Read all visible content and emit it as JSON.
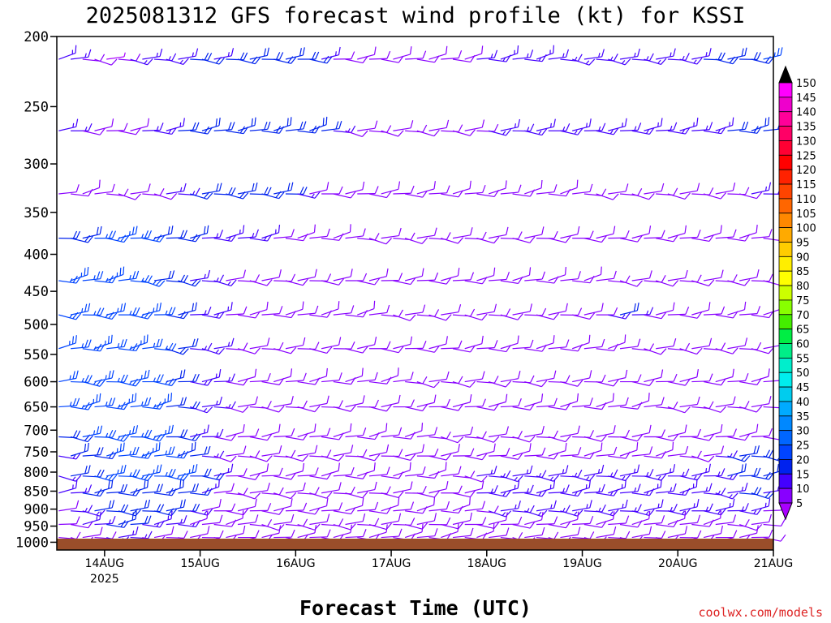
{
  "chart_data": {
    "type": "wind-barb-time-height",
    "title": "2025081312 GFS forecast wind profile (kt) for KSSI",
    "xlabel": "Forecast Time (UTC)",
    "ylabel": "",
    "credit": "coolwx.com/models",
    "credit_color": "#dd2222",
    "ground_color": "#9a4e2a",
    "x_ticks": [
      {
        "label": "14AUG",
        "sub": "2025",
        "day": 0
      },
      {
        "label": "15AUG",
        "sub": "",
        "day": 1
      },
      {
        "label": "16AUG",
        "sub": "",
        "day": 2
      },
      {
        "label": "17AUG",
        "sub": "",
        "day": 3
      },
      {
        "label": "18AUG",
        "sub": "",
        "day": 4
      },
      {
        "label": "19AUG",
        "sub": "",
        "day": 5
      },
      {
        "label": "20AUG",
        "sub": "",
        "day": 6
      },
      {
        "label": "21AUG",
        "sub": "",
        "day": 7
      }
    ],
    "xlim_days": [
      -0.5,
      7.0
    ],
    "y_ticks": [
      "200",
      "250",
      "300",
      "350",
      "400",
      "450",
      "500",
      "550",
      "600",
      "650",
      "700",
      "750",
      "800",
      "850",
      "900",
      "950",
      "1000"
    ],
    "y_unit": "hPa",
    "ylim": [
      200,
      1025
    ],
    "y_scale": "log-pressure",
    "time_step_hours": 3,
    "levels": [
      {
        "p": 215,
        "speed": [
          15,
          15,
          12,
          10,
          5,
          12,
          15,
          15,
          15,
          15,
          15,
          18,
          18,
          15,
          18,
          18,
          20,
          20,
          20,
          20,
          18,
          18,
          15,
          12,
          8,
          8,
          8,
          8,
          10,
          12,
          12,
          12,
          12,
          12,
          12,
          14,
          15,
          15,
          15,
          15,
          15,
          15,
          15,
          15,
          15,
          15,
          15,
          15,
          15,
          15,
          15,
          15,
          15,
          15,
          18,
          18,
          20,
          20,
          20,
          25,
          30,
          38,
          40,
          42
        ]
      },
      {
        "p": 270,
        "speed": [
          15,
          15,
          12,
          12,
          10,
          10,
          12,
          15,
          15,
          15,
          18,
          18,
          20,
          20,
          20,
          22,
          22,
          22,
          22,
          22,
          20,
          20,
          18,
          15,
          12,
          12,
          12,
          12,
          12,
          12,
          12,
          12,
          12,
          12,
          12,
          12,
          15,
          15,
          15,
          15,
          15,
          15,
          15,
          15,
          15,
          15,
          15,
          15,
          15,
          15,
          15,
          15,
          15,
          15,
          15,
          15,
          18,
          18,
          20,
          20,
          22,
          25,
          30,
          35
        ]
      },
      {
        "p": 330,
        "speed": [
          12,
          12,
          10,
          10,
          10,
          10,
          10,
          12,
          12,
          15,
          15,
          18,
          18,
          20,
          20,
          20,
          20,
          20,
          20,
          18,
          15,
          12,
          10,
          8,
          8,
          8,
          8,
          8,
          8,
          10,
          10,
          10,
          10,
          10,
          10,
          10,
          10,
          10,
          10,
          10,
          12,
          12,
          12,
          12,
          12,
          12,
          12,
          12,
          12,
          12,
          12,
          12,
          12,
          12,
          12,
          12,
          12,
          12,
          15,
          15,
          18,
          20,
          22,
          25
        ]
      },
      {
        "p": 380,
        "speed": [
          20,
          20,
          22,
          25,
          25,
          25,
          25,
          25,
          22,
          20,
          18,
          18,
          15,
          15,
          15,
          15,
          15,
          15,
          12,
          12,
          12,
          10,
          10,
          10,
          10,
          10,
          8,
          8,
          8,
          8,
          8,
          8,
          8,
          8,
          8,
          8,
          10,
          10,
          10,
          10,
          10,
          10,
          10,
          10,
          10,
          10,
          10,
          10,
          10,
          10,
          10,
          10,
          10,
          10,
          10,
          10,
          10,
          12,
          12,
          12,
          15,
          15,
          18,
          20
        ]
      },
      {
        "p": 435,
        "speed": [
          25,
          25,
          25,
          25,
          25,
          25,
          25,
          25,
          22,
          20,
          18,
          15,
          15,
          15,
          12,
          12,
          12,
          10,
          10,
          10,
          8,
          8,
          8,
          8,
          8,
          8,
          8,
          8,
          8,
          8,
          8,
          8,
          8,
          8,
          8,
          8,
          8,
          8,
          8,
          8,
          8,
          8,
          8,
          8,
          8,
          8,
          8,
          8,
          8,
          8,
          8,
          8,
          8,
          8,
          8,
          8,
          8,
          8,
          8,
          8,
          10,
          10,
          10,
          12
        ]
      },
      {
        "p": 485,
        "speed": [
          25,
          25,
          25,
          25,
          25,
          25,
          25,
          25,
          25,
          20,
          18,
          15,
          15,
          15,
          12,
          12,
          12,
          10,
          10,
          10,
          8,
          8,
          8,
          8,
          8,
          8,
          8,
          8,
          8,
          8,
          8,
          8,
          8,
          8,
          8,
          8,
          8,
          8,
          8,
          8,
          8,
          8,
          8,
          8,
          8,
          8,
          15,
          18,
          15,
          8,
          8,
          8,
          8,
          8,
          8,
          8,
          8,
          8,
          8,
          8,
          8,
          8,
          8,
          10
        ]
      },
      {
        "p": 540,
        "speed": [
          25,
          25,
          25,
          25,
          25,
          25,
          25,
          25,
          25,
          20,
          18,
          15,
          15,
          15,
          12,
          12,
          12,
          10,
          10,
          10,
          8,
          8,
          8,
          8,
          8,
          8,
          8,
          8,
          8,
          8,
          8,
          8,
          8,
          8,
          8,
          8,
          8,
          8,
          8,
          8,
          8,
          8,
          8,
          8,
          8,
          8,
          8,
          8,
          8,
          8,
          8,
          8,
          8,
          8,
          8,
          8,
          8,
          8,
          8,
          8,
          8,
          8,
          8,
          8
        ]
      },
      {
        "p": 600,
        "speed": [
          25,
          25,
          25,
          25,
          25,
          25,
          25,
          25,
          25,
          20,
          18,
          15,
          15,
          15,
          12,
          12,
          12,
          10,
          10,
          10,
          8,
          8,
          8,
          8,
          8,
          8,
          8,
          8,
          8,
          8,
          8,
          8,
          8,
          8,
          8,
          8,
          8,
          8,
          8,
          8,
          8,
          8,
          8,
          8,
          8,
          8,
          8,
          8,
          8,
          8,
          8,
          8,
          8,
          8,
          8,
          8,
          8,
          8,
          8,
          8,
          8,
          8,
          8,
          8
        ]
      },
      {
        "p": 650,
        "speed": [
          25,
          25,
          25,
          25,
          25,
          25,
          25,
          25,
          25,
          20,
          18,
          15,
          15,
          15,
          12,
          12,
          12,
          10,
          10,
          10,
          8,
          8,
          8,
          8,
          8,
          8,
          8,
          8,
          8,
          8,
          8,
          8,
          8,
          8,
          8,
          8,
          8,
          8,
          8,
          8,
          8,
          8,
          8,
          8,
          8,
          8,
          8,
          8,
          8,
          8,
          8,
          8,
          8,
          8,
          8,
          8,
          8,
          8,
          8,
          8,
          8,
          8,
          8,
          8
        ]
      },
      {
        "p": 715,
        "speed": [
          20,
          22,
          25,
          25,
          25,
          25,
          25,
          25,
          25,
          20,
          18,
          15,
          15,
          12,
          12,
          10,
          10,
          10,
          8,
          8,
          8,
          8,
          8,
          8,
          8,
          8,
          8,
          8,
          8,
          8,
          8,
          8,
          8,
          8,
          8,
          8,
          8,
          8,
          8,
          8,
          8,
          8,
          8,
          8,
          8,
          8,
          8,
          8,
          8,
          8,
          8,
          8,
          8,
          8,
          8,
          8,
          8,
          8,
          10,
          12,
          15,
          15,
          18,
          15
        ]
      },
      {
        "p": 760,
        "speed": [
          15,
          18,
          20,
          22,
          25,
          25,
          25,
          25,
          25,
          25,
          20,
          18,
          15,
          12,
          10,
          10,
          10,
          8,
          8,
          8,
          8,
          8,
          8,
          8,
          8,
          8,
          8,
          8,
          8,
          8,
          8,
          12,
          12,
          12,
          12,
          12,
          12,
          12,
          12,
          12,
          12,
          12,
          12,
          12,
          12,
          12,
          12,
          12,
          12,
          12,
          12,
          12,
          12,
          12,
          12,
          15,
          20,
          22,
          22,
          20,
          18,
          15,
          15,
          15
        ]
      },
      {
        "p": 810,
        "speed": [
          15,
          18,
          20,
          25,
          25,
          25,
          25,
          25,
          25,
          25,
          25,
          20,
          18,
          15,
          12,
          10,
          10,
          8,
          8,
          8,
          8,
          8,
          8,
          8,
          8,
          8,
          8,
          8,
          8,
          8,
          8,
          12,
          12,
          12,
          12,
          15,
          15,
          15,
          15,
          15,
          15,
          15,
          15,
          15,
          15,
          15,
          15,
          15,
          15,
          15,
          15,
          15,
          15,
          15,
          15,
          15,
          18,
          20,
          20,
          18,
          15,
          15,
          15,
          15
        ]
      },
      {
        "p": 855,
        "speed": [
          15,
          15,
          18,
          20,
          22,
          22,
          22,
          20,
          20,
          20,
          20,
          18,
          15,
          12,
          10,
          10,
          8,
          8,
          8,
          8,
          8,
          8,
          8,
          8,
          8,
          8,
          8,
          8,
          8,
          8,
          8,
          12,
          12,
          12,
          12,
          15,
          15,
          15,
          15,
          15,
          15,
          15,
          15,
          15,
          15,
          15,
          15,
          15,
          15,
          15,
          15,
          15,
          15,
          15,
          15,
          15,
          15,
          18,
          18,
          15,
          15,
          15,
          15,
          15
        ]
      },
      {
        "p": 905,
        "speed": [
          12,
          15,
          15,
          18,
          20,
          20,
          20,
          18,
          18,
          18,
          18,
          15,
          12,
          10,
          10,
          8,
          8,
          8,
          8,
          8,
          8,
          8,
          8,
          8,
          8,
          8,
          8,
          8,
          8,
          8,
          8,
          12,
          12,
          12,
          12,
          12,
          15,
          15,
          15,
          15,
          15,
          15,
          15,
          15,
          15,
          15,
          15,
          15,
          15,
          15,
          15,
          15,
          15,
          15,
          15,
          15,
          15,
          15,
          15,
          12,
          12,
          12,
          12,
          12
        ]
      },
      {
        "p": 945,
        "speed": [
          10,
          12,
          15,
          15,
          18,
          18,
          18,
          15,
          15,
          15,
          15,
          12,
          10,
          8,
          8,
          8,
          8,
          8,
          8,
          8,
          8,
          8,
          8,
          8,
          8,
          8,
          8,
          8,
          8,
          8,
          8,
          10,
          10,
          10,
          10,
          10,
          12,
          12,
          12,
          12,
          12,
          12,
          12,
          12,
          12,
          12,
          12,
          12,
          12,
          12,
          12,
          12,
          12,
          12,
          12,
          12,
          12,
          12,
          12,
          10,
          10,
          10,
          10,
          10
        ]
      },
      {
        "p": 985,
        "speed": [
          8,
          10,
          12,
          12,
          15,
          15,
          15,
          12,
          12,
          12,
          12,
          10,
          8,
          8,
          8,
          8,
          8,
          8,
          8,
          8,
          8,
          8,
          8,
          8,
          8,
          8,
          8,
          8,
          8,
          8,
          8,
          8,
          8,
          8,
          8,
          8,
          10,
          10,
          10,
          10,
          10,
          10,
          10,
          10,
          10,
          10,
          10,
          10,
          10,
          10,
          10,
          10,
          10,
          10,
          10,
          10,
          10,
          10,
          10,
          8,
          8,
          8,
          8,
          8
        ]
      }
    ],
    "colorbar": {
      "units": "kt",
      "labels": [
        "150",
        "145",
        "140",
        "135",
        "130",
        "125",
        "120",
        "115",
        "110",
        "105",
        "100",
        "95",
        "90",
        "85",
        "80",
        "75",
        "70",
        "65",
        "60",
        "55",
        "50",
        "45",
        "40",
        "35",
        "30",
        "25",
        "20",
        "15",
        "10",
        "5"
      ],
      "colors": [
        "#000000",
        "#ff00ff",
        "#ee00cc",
        "#ff0099",
        "#ff0066",
        "#ff0033",
        "#ff0000",
        "#ff2200",
        "#ff4400",
        "#ff6600",
        "#ff8800",
        "#ffaa00",
        "#ffcc00",
        "#ffee00",
        "#ffff00",
        "#ccff00",
        "#88ff00",
        "#44ee00",
        "#00ee44",
        "#00ee88",
        "#00eecc",
        "#00eeee",
        "#00ccee",
        "#00aaff",
        "#0088ff",
        "#0066ff",
        "#0044ff",
        "#0022ee",
        "#4400ff",
        "#8800ff",
        "#aa00ff"
      ]
    }
  }
}
